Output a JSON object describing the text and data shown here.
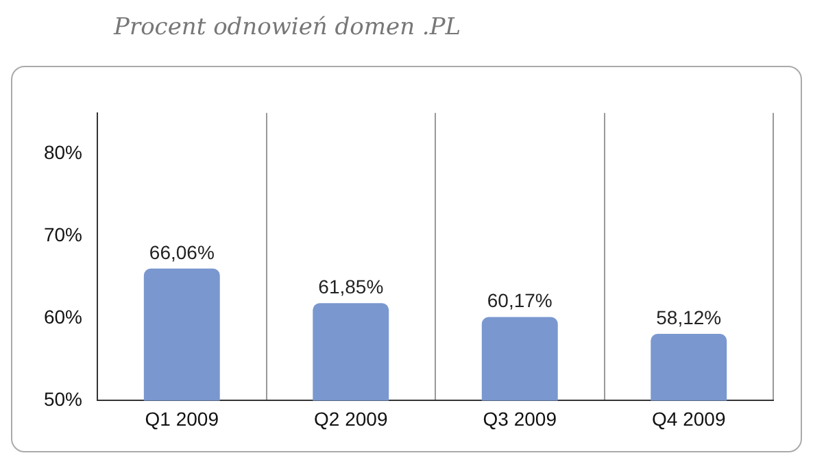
{
  "chart_data": {
    "type": "bar",
    "title": "Procent odnowień domen .PL",
    "categories": [
      "Q1 2009",
      "Q2 2009",
      "Q3 2009",
      "Q4 2009"
    ],
    "values": [
      66.06,
      61.85,
      60.17,
      58.12
    ],
    "value_labels": [
      "66,06%",
      "61,85%",
      "60,17%",
      "58,12%"
    ],
    "color": "#7a98cf",
    "ylim": [
      50,
      85
    ],
    "yticks": [
      {
        "value": 50,
        "label": "50%"
      },
      {
        "value": 60,
        "label": "60%"
      },
      {
        "value": 70,
        "label": "70%"
      },
      {
        "value": 80,
        "label": "80%"
      }
    ],
    "grid": "x"
  }
}
